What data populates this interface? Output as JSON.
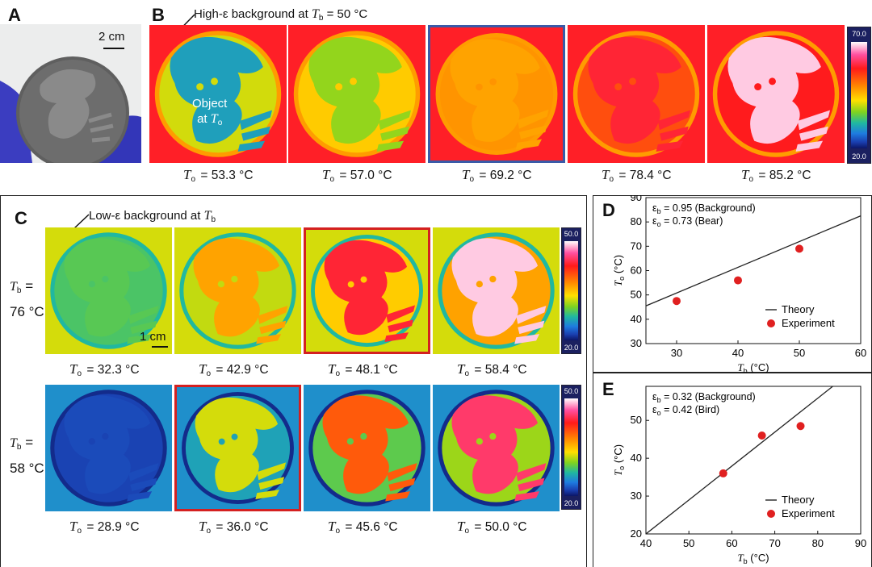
{
  "panels": {
    "a": {
      "label": "A",
      "scale_bar": "2 cm"
    },
    "b": {
      "label": "B",
      "annotation_prefix": "High-ε background at ",
      "annotation_var": "T",
      "annotation_sub": "b",
      "annotation_suffix": " = 50 °C",
      "object_line1": "Object",
      "object_line2": "at ",
      "object_var": "T",
      "object_sub": "o",
      "colorbar": {
        "max": "70.0",
        "min": "20.0"
      },
      "temperatures": [
        "53.3 °C",
        "57.0 °C",
        "69.2 °C",
        "78.4 °C",
        "85.2 °C"
      ],
      "levels": [
        0.25,
        0.42,
        0.62,
        0.82,
        0.97
      ],
      "highlight_index": 2,
      "highlight_color": "#3a5aa8"
    },
    "c": {
      "label": "C",
      "annotation_prefix": "Low-ε background at ",
      "annotation_var": "T",
      "annotation_sub": "b",
      "scale_bar": "1 cm",
      "colorbar": {
        "max": "50.0",
        "min": "20.0"
      },
      "highlight_color": "#d42020",
      "rows": [
        {
          "tb_var": "T",
          "tb_sub": "b",
          "tb_eq": " =",
          "tb_value": "76 °C",
          "temperatures": [
            "32.3 °C",
            "42.9 °C",
            "48.1 °C",
            "58.4 °C"
          ],
          "levels": [
            0.36,
            0.62,
            0.82,
            0.97
          ],
          "bg_level": 0.48,
          "highlight_index": 2
        },
        {
          "tb_var": "T",
          "tb_sub": "b",
          "tb_eq": " =",
          "tb_value": "58 °C",
          "temperatures": [
            "28.9 °C",
            "36.0 °C",
            "45.6 °C",
            "50.0 °C"
          ],
          "levels": [
            0.1,
            0.48,
            0.72,
            0.86
          ],
          "bg_level": 0.22,
          "highlight_index": 1
        }
      ]
    },
    "d": {
      "label": "D"
    },
    "e": {
      "label": "E"
    }
  },
  "caption_var": "T",
  "caption_sub": "o",
  "caption_eq": " = ",
  "chart_data": [
    {
      "panel": "D",
      "type": "scatter",
      "xlabel_var": "T",
      "xlabel_sub": "b",
      "xlabel_unit": " (°C)",
      "ylabel_var": "T",
      "ylabel_sub": "o",
      "ylabel_unit": " (°C)",
      "xlim": [
        25,
        60
      ],
      "ylim": [
        30,
        90
      ],
      "xticks": [
        30,
        40,
        50,
        60
      ],
      "yticks": [
        30,
        40,
        50,
        60,
        70,
        80,
        90
      ],
      "annotations": [
        {
          "sym": "ε",
          "sub": "b",
          "text": " = 0.95 (Background)"
        },
        {
          "sym": "ε",
          "sub": "o",
          "text": " = 0.73 (Bear)"
        }
      ],
      "series": [
        {
          "name": "Theory",
          "type": "line",
          "x": [
            25,
            60
          ],
          "y": [
            45.5,
            82.5
          ],
          "color": "#222222"
        },
        {
          "name": "Experiment",
          "type": "scatter",
          "x": [
            30,
            40,
            50
          ],
          "y": [
            47.5,
            56,
            69
          ],
          "color": "#e02020"
        }
      ],
      "legend": "bottom-right"
    },
    {
      "panel": "E",
      "type": "scatter",
      "xlabel_var": "T",
      "xlabel_sub": "b",
      "xlabel_unit": " (°C)",
      "ylabel_var": "T",
      "ylabel_sub": "o",
      "ylabel_unit": " (°C)",
      "xlim": [
        40,
        90
      ],
      "ylim": [
        20,
        59
      ],
      "xticks": [
        40,
        50,
        60,
        70,
        80,
        90
      ],
      "yticks": [
        20,
        30,
        40,
        50
      ],
      "annotations": [
        {
          "sym": "ε",
          "sub": "b",
          "text": " = 0.32 (Background)"
        },
        {
          "sym": "ε",
          "sub": "o",
          "text": " = 0.42 (Bird)"
        }
      ],
      "series": [
        {
          "name": "Theory",
          "type": "line",
          "x": [
            40,
            83.5
          ],
          "y": [
            20,
            59
          ],
          "color": "#222222"
        },
        {
          "name": "Experiment",
          "type": "scatter",
          "x": [
            58,
            67,
            76
          ],
          "y": [
            36,
            46,
            48.5
          ],
          "color": "#e02020"
        }
      ],
      "legend": "bottom-right"
    }
  ]
}
